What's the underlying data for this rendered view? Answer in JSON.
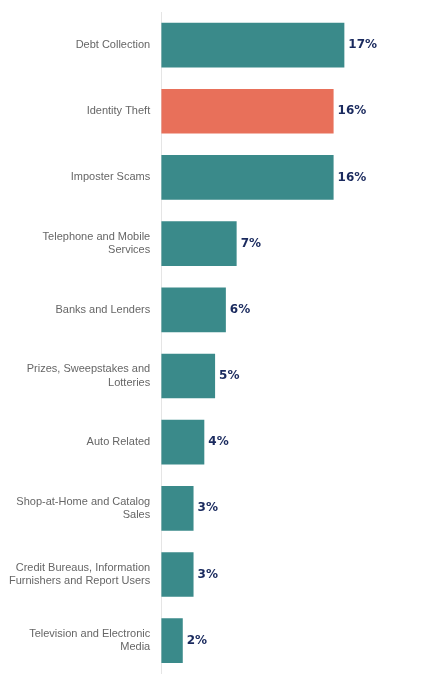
{
  "chart_data": {
    "type": "bar",
    "orientation": "horizontal",
    "categories": [
      "Television and Electronic\nMedia",
      "Credit Bureaus, Information\nFurnishers and Report Users",
      "Shop-at-Home and Catalog\nSales",
      "Auto Related",
      "Prizes, Sweepstakes and\nLotteries",
      "Banks and Lenders",
      "Telephone and Mobile\nServices",
      "Imposter Scams",
      "Identity Theft",
      "Debt Collection"
    ],
    "values": [
      2,
      3,
      3,
      4,
      5,
      6,
      7,
      16,
      16,
      17
    ],
    "value_labels": [
      "2%",
      "3%",
      "3%",
      "4%",
      "5%",
      "6%",
      "7%",
      "16%",
      "16%",
      "17%"
    ],
    "colors": [
      "#3a8a8a",
      "#3a8a8a",
      "#3a8a8a",
      "#3a8a8a",
      "#3a8a8a",
      "#3a8a8a",
      "#3a8a8a",
      "#3a8a8a",
      "#e8705a",
      "#3a8a8a"
    ],
    "xlim": [
      0,
      23
    ],
    "data_labels": true,
    "tick_labels": "y",
    "grid": false
  }
}
